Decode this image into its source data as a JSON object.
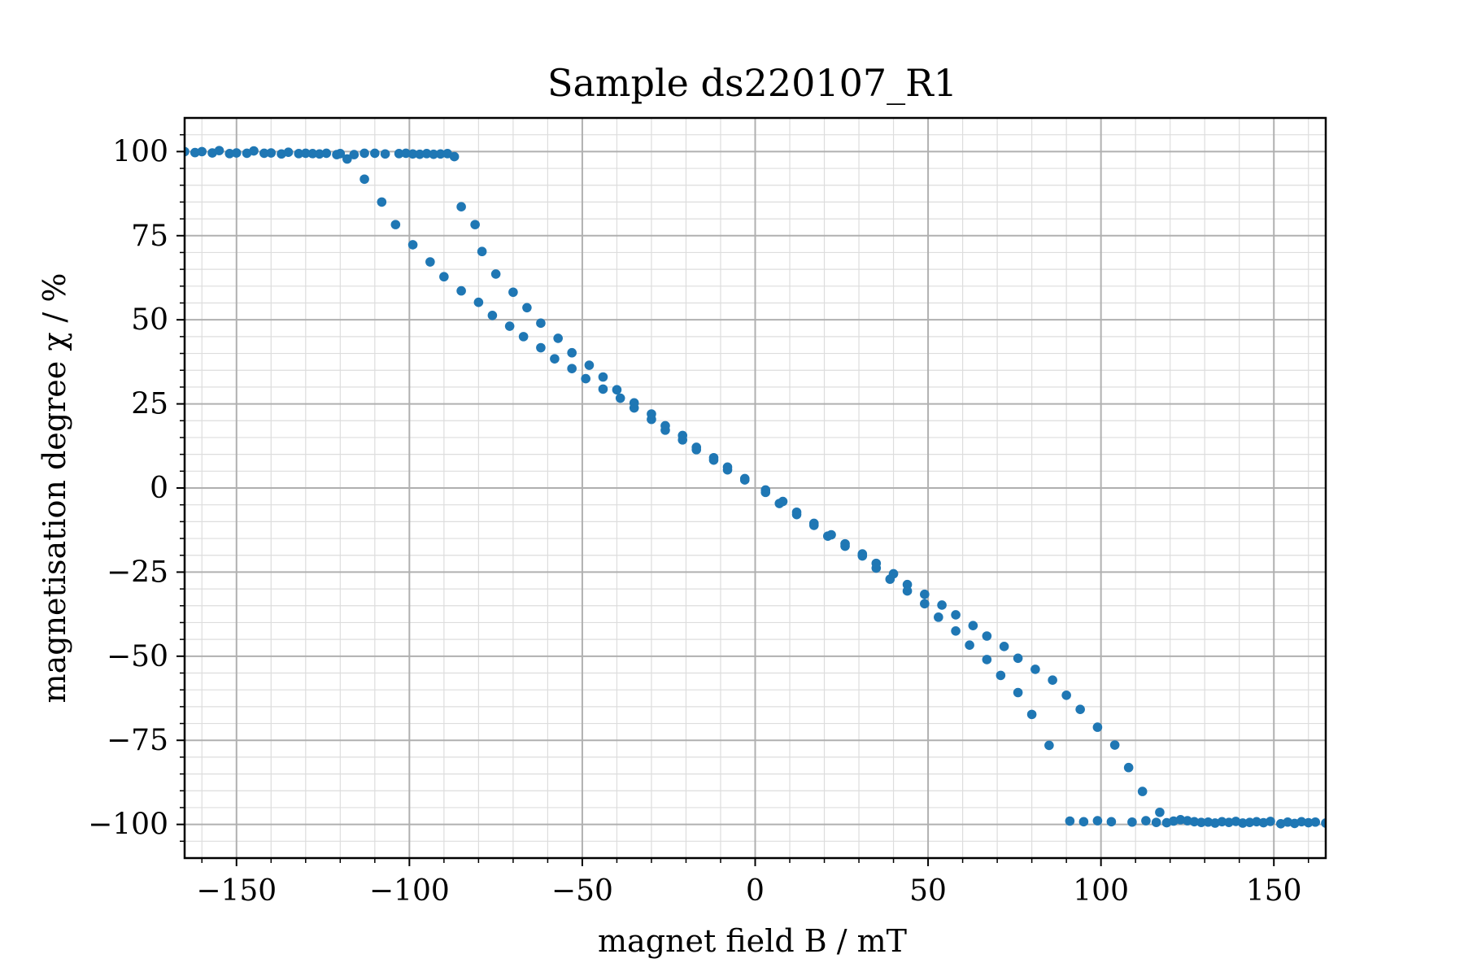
{
  "chart_data": {
    "type": "scatter",
    "title": "Sample ds220107_R1",
    "xlabel": "magnet field B / mT",
    "ylabel": "magnetisation degree χ / %",
    "xlim": [
      -165,
      165
    ],
    "ylim": [
      -110,
      110
    ],
    "x_ticks": [
      -150,
      -100,
      -50,
      0,
      50,
      100,
      150
    ],
    "y_ticks": [
      100,
      75,
      50,
      25,
      0,
      -25,
      -50,
      -75,
      -100
    ],
    "x_tick_labels": [
      "−150",
      "−100",
      "−50",
      "0",
      "50",
      "100",
      "150"
    ],
    "y_tick_labels": [
      "100",
      "75",
      "50",
      "25",
      "0",
      "−25",
      "−50",
      "−75",
      "−100"
    ],
    "grid": true,
    "minor_grid": true,
    "marker_color": "#1f77b4",
    "series": [
      {
        "name": "",
        "points": [
          [
            -165,
            100
          ],
          [
            -162,
            99.7
          ],
          [
            -160,
            100
          ],
          [
            -157,
            99.6
          ],
          [
            -155,
            100.3
          ],
          [
            -152,
            99.4
          ],
          [
            -150,
            99.6
          ],
          [
            -147,
            99.5
          ],
          [
            -145,
            100.2
          ],
          [
            -142,
            99.5
          ],
          [
            -140,
            99.6
          ],
          [
            -137,
            99.3
          ],
          [
            -135,
            99.8
          ],
          [
            -132,
            99.4
          ],
          [
            -130,
            99.5
          ],
          [
            -128,
            99.4
          ],
          [
            -126,
            99.3
          ],
          [
            -124,
            99.5
          ],
          [
            -121,
            99.1
          ],
          [
            -120,
            99.4
          ],
          [
            -118,
            97.8
          ],
          [
            -116,
            99.1
          ],
          [
            -113,
            99.5
          ],
          [
            -110,
            99.5
          ],
          [
            -107,
            99.3
          ],
          [
            -103,
            99.4
          ],
          [
            -101,
            99.5
          ],
          [
            -99,
            99.3
          ],
          [
            -97,
            99.2
          ],
          [
            -95,
            99.4
          ],
          [
            -93,
            99.2
          ],
          [
            -91,
            99.3
          ],
          [
            -89,
            99.4
          ],
          [
            -87,
            98.5
          ],
          [
            -113,
            91.8
          ],
          [
            -108,
            85
          ],
          [
            -104,
            78.3
          ],
          [
            -99,
            72.3
          ],
          [
            -94,
            67.2
          ],
          [
            -90,
            62.8
          ],
          [
            -85,
            58.6
          ],
          [
            -80,
            55.2
          ],
          [
            -76,
            51.3
          ],
          [
            -71,
            48.1
          ],
          [
            -67,
            45
          ],
          [
            -62,
            41.7
          ],
          [
            -58,
            38.4
          ],
          [
            -53,
            35.5
          ],
          [
            -49,
            32.5
          ],
          [
            -44,
            29.4
          ],
          [
            -39,
            26.7
          ],
          [
            -35,
            23.8
          ],
          [
            -30,
            20.4
          ],
          [
            -26,
            17.2
          ],
          [
            -21,
            14.3
          ],
          [
            -17,
            11.4
          ],
          [
            -12,
            8.3
          ],
          [
            -8,
            5.4
          ],
          [
            -3,
            2.4
          ],
          [
            3,
            -1.3
          ],
          [
            7,
            -4.6
          ],
          [
            12,
            -7.9
          ],
          [
            17,
            -11.1
          ],
          [
            21,
            -14.3
          ],
          [
            26,
            -17.3
          ],
          [
            31,
            -20.2
          ],
          [
            35,
            -23.8
          ],
          [
            39,
            -27.1
          ],
          [
            44,
            -30.6
          ],
          [
            49,
            -34.4
          ],
          [
            53,
            -38.4
          ],
          [
            58,
            -42.5
          ],
          [
            62,
            -46.7
          ],
          [
            67,
            -51
          ],
          [
            71,
            -55.7
          ],
          [
            76,
            -60.8
          ],
          [
            80,
            -67.3
          ],
          [
            85,
            -76.5
          ],
          [
            -85,
            83.6
          ],
          [
            -81,
            78.3
          ],
          [
            -79,
            70.3
          ],
          [
            -75,
            63.6
          ],
          [
            -70,
            58.2
          ],
          [
            -66,
            53.6
          ],
          [
            -62,
            49
          ],
          [
            -57,
            44.5
          ],
          [
            -53,
            40.2
          ],
          [
            -48,
            36.5
          ],
          [
            -44,
            33
          ],
          [
            -40,
            29.2
          ],
          [
            -35,
            25.3
          ],
          [
            -30,
            22
          ],
          [
            -26,
            18.5
          ],
          [
            -21,
            15.6
          ],
          [
            -17,
            12.1
          ],
          [
            -12,
            9
          ],
          [
            -8,
            6.2
          ],
          [
            -3,
            2.8
          ],
          [
            3,
            -0.6
          ],
          [
            8,
            -4
          ],
          [
            12,
            -7.2
          ],
          [
            17,
            -10.5
          ],
          [
            22,
            -13.9
          ],
          [
            26,
            -16.6
          ],
          [
            31,
            -19.6
          ],
          [
            35,
            -22.4
          ],
          [
            40,
            -25.5
          ],
          [
            44,
            -28.7
          ],
          [
            49,
            -31.6
          ],
          [
            54,
            -34.8
          ],
          [
            58,
            -37.7
          ],
          [
            63,
            -40.9
          ],
          [
            67,
            -44
          ],
          [
            72,
            -47.1
          ],
          [
            76,
            -50.6
          ],
          [
            81,
            -53.9
          ],
          [
            86,
            -57.1
          ],
          [
            90,
            -61.6
          ],
          [
            94,
            -65.8
          ],
          [
            99,
            -71.1
          ],
          [
            104,
            -76.4
          ],
          [
            108,
            -83.1
          ],
          [
            112,
            -90.2
          ],
          [
            117,
            -96.4
          ],
          [
            91,
            -99
          ],
          [
            95,
            -99.2
          ],
          [
            99,
            -98.9
          ],
          [
            103,
            -99.2
          ],
          [
            109,
            -99.3
          ],
          [
            113,
            -98.9
          ],
          [
            116,
            -99.4
          ],
          [
            119,
            -99.5
          ],
          [
            121,
            -99
          ],
          [
            123,
            -98.6
          ],
          [
            125,
            -98.9
          ],
          [
            127,
            -99.2
          ],
          [
            129,
            -99.4
          ],
          [
            131,
            -99.3
          ],
          [
            133,
            -99.6
          ],
          [
            135,
            -99.2
          ],
          [
            137,
            -99.4
          ],
          [
            139,
            -99.1
          ],
          [
            141,
            -99.6
          ],
          [
            143,
            -99.4
          ],
          [
            145,
            -99.2
          ],
          [
            147,
            -99.5
          ],
          [
            149,
            -99.1
          ],
          [
            152,
            -99.8
          ],
          [
            154,
            -99.3
          ],
          [
            156,
            -99.7
          ],
          [
            158,
            -99.2
          ],
          [
            160,
            -99.5
          ],
          [
            162,
            -99.3
          ],
          [
            165,
            -99.6
          ]
        ]
      }
    ]
  }
}
